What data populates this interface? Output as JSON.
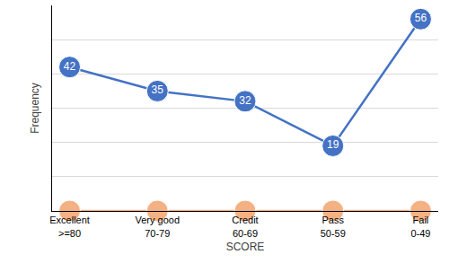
{
  "chart_data": {
    "type": "line",
    "xlabel": "SCORE",
    "ylabel": "Frequency",
    "categories": [
      "Excellent\n>=80",
      "Very good\n70-79",
      "Credit\n60-69",
      "Pass\n50-59",
      "Fail\n0-49"
    ],
    "series": [
      {
        "color": "#4472c4",
        "values": [
          42,
          35,
          32,
          19,
          56
        ],
        "marker": "circle",
        "data_labels": true
      },
      {
        "color": "#f4b183",
        "values": [
          0,
          0,
          0,
          0,
          0
        ],
        "marker": "circle"
      }
    ],
    "ylim": [
      0,
      60
    ],
    "yticks": [
      0,
      10,
      20,
      30,
      40,
      50,
      60
    ],
    "grid": true,
    "tick_labels": "x"
  }
}
